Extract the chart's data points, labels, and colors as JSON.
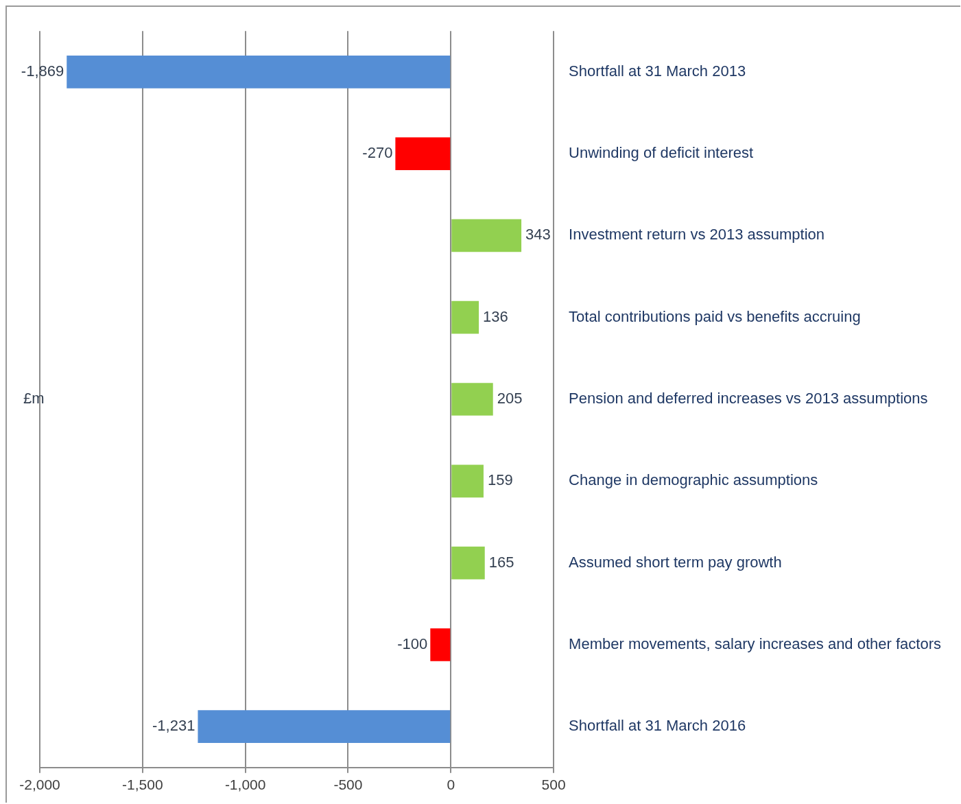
{
  "chart_data": {
    "type": "bar",
    "orientation": "horizontal",
    "ylabel": "£m",
    "categories": [
      "Shortfall at 31 March 2013",
      "Unwinding of deficit interest",
      "Investment return vs 2013 assumption",
      "Total contributions paid vs benefits accruing",
      "Pension and deferred increases vs 2013 assumptions",
      "Change in demographic assumptions",
      "Assumed short term pay growth",
      "Member movements, salary increases and other factors",
      "Shortfall at 31 March 2016"
    ],
    "values": [
      -1869,
      -270,
      343,
      136,
      205,
      159,
      165,
      -100,
      -1231
    ],
    "colors": [
      "#558ed5",
      "#ff0000",
      "#92d050",
      "#92d050",
      "#92d050",
      "#92d050",
      "#92d050",
      "#ff0000",
      "#558ed5"
    ],
    "value_labels": [
      "-1,869",
      "-270",
      "343",
      "136",
      "205",
      "159",
      "165",
      "-100",
      "-1,231"
    ],
    "xlim": [
      -2000,
      500
    ],
    "xticks": [
      {
        "value": -2000,
        "label": "-2,000"
      },
      {
        "value": -1500,
        "label": "-1,500"
      },
      {
        "value": -1000,
        "label": "-1,000"
      },
      -500,
      0,
      500
    ],
    "grid": "x",
    "legend": false
  }
}
